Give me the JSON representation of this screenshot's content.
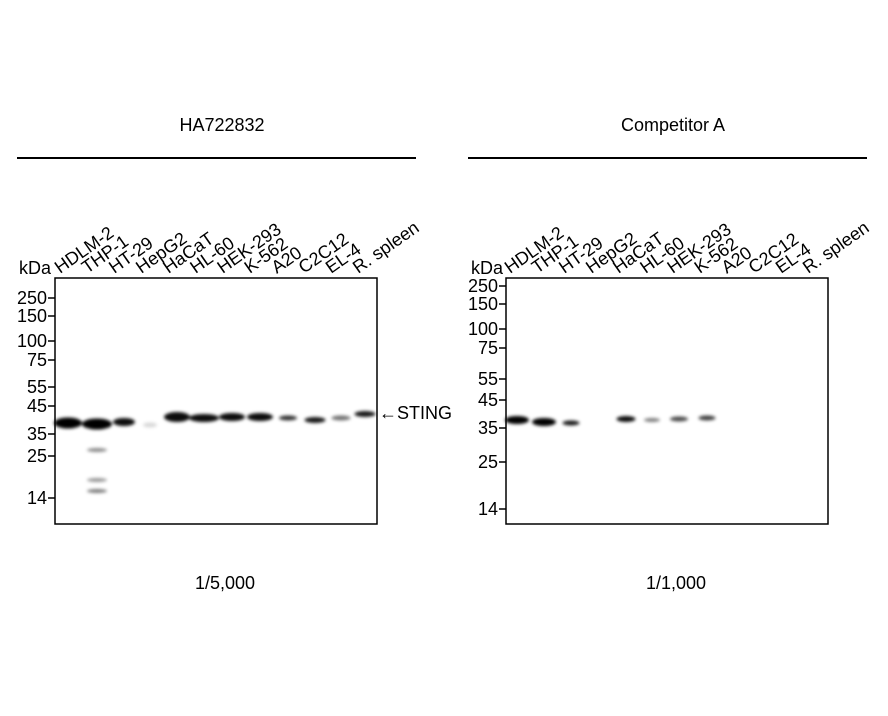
{
  "panels": [
    {
      "title": "HA722832",
      "unit": "kDa",
      "lanes": [
        "HDLM-2",
        "THP-1",
        "HT-29",
        "HepG2",
        "HaCaT",
        "HL-60",
        "HEK-293",
        "K-562",
        "A20",
        "C2C12",
        "EL-4",
        "R. spleen"
      ],
      "markers": [
        "250",
        "150",
        "100",
        "75",
        "55",
        "45",
        "35",
        "25",
        "14"
      ],
      "target": "←STING",
      "dilution": "1/5,000"
    },
    {
      "title": "Competitor A",
      "unit": "kDa",
      "lanes": [
        "HDLM-2",
        "THP-1",
        "HT-29",
        "HepG2",
        "HaCaT",
        "HL-60",
        "HEK-293",
        "K-562",
        "A20",
        "C2C12",
        "EL-4",
        "R. spleen"
      ],
      "markers": [
        "250",
        "150",
        "100",
        "75",
        "55",
        "45",
        "35",
        "25",
        "14"
      ],
      "dilution": "1/1,000"
    }
  ]
}
